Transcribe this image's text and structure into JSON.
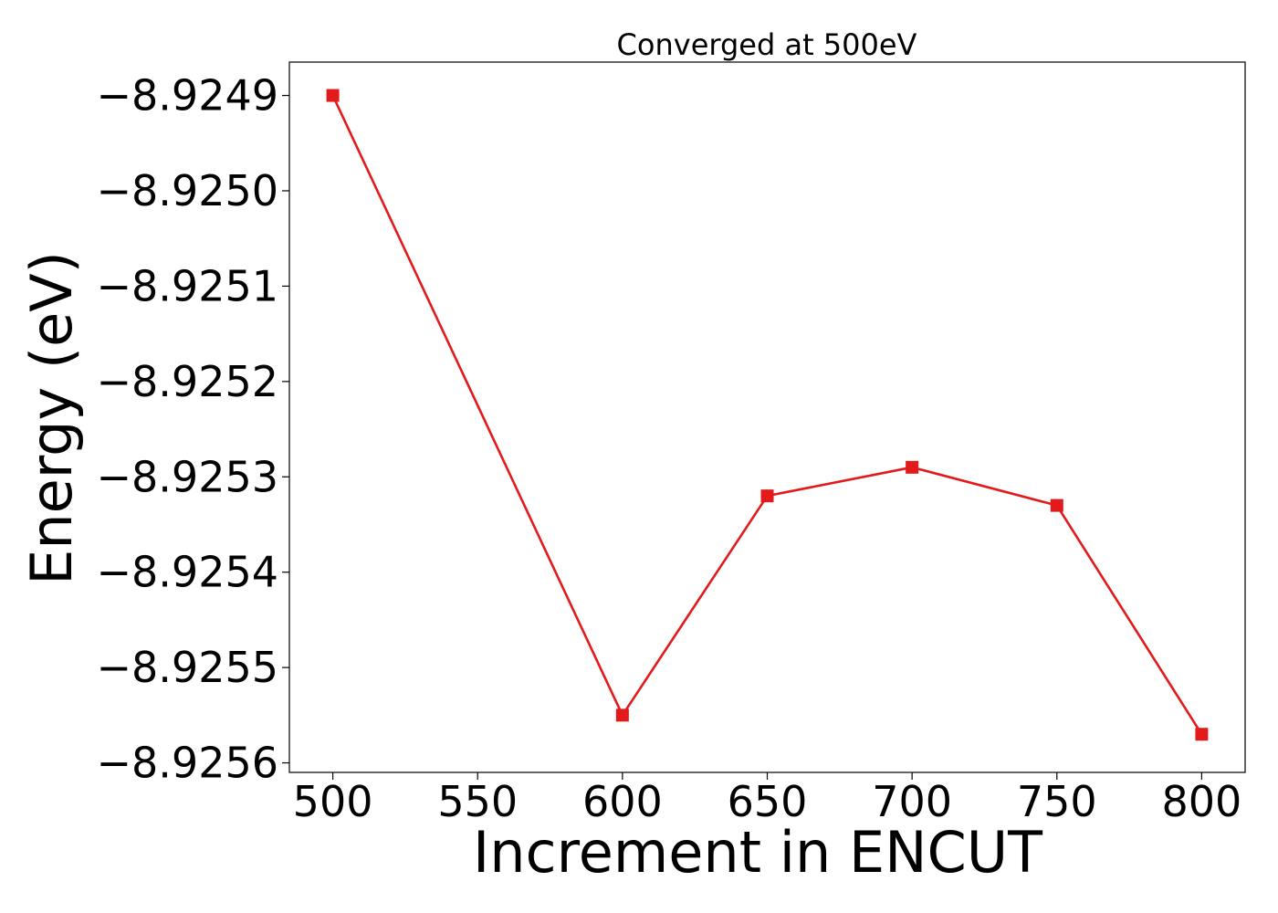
{
  "chart_data": {
    "type": "line",
    "title": "Converged at 500eV",
    "xlabel": "Increment in ENCUT",
    "ylabel": "Energy (eV)",
    "x": [
      500,
      600,
      650,
      700,
      750,
      800
    ],
    "series": [
      {
        "values": [
          -8.9249,
          -8.92555,
          -8.92532,
          -8.92529,
          -8.92533,
          -8.92557
        ],
        "color": "#e31a1c",
        "marker": "square"
      }
    ],
    "xlim": [
      485,
      815
    ],
    "ylim": [
      -8.92561,
      -8.924865
    ],
    "xticks": [
      500,
      550,
      600,
      650,
      700,
      750,
      800
    ],
    "xtick_labels": [
      "500",
      "550",
      "600",
      "650",
      "700",
      "750",
      "800"
    ],
    "yticks": [
      -8.9249,
      -8.925,
      -8.9251,
      -8.9252,
      -8.9253,
      -8.9254,
      -8.9255,
      -8.9256
    ],
    "ytick_labels": [
      "−8.9249",
      "−8.9250",
      "−8.9251",
      "−8.9252",
      "−8.9253",
      "−8.9254",
      "−8.9255",
      "−8.9256"
    ],
    "grid": false,
    "legend": "none"
  }
}
